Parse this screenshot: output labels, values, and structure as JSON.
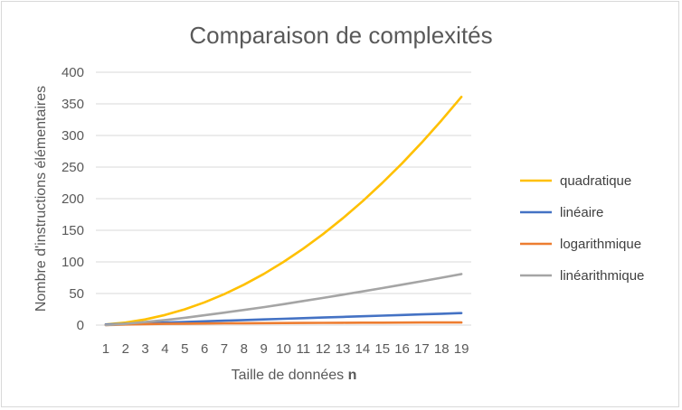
{
  "chart_data": {
    "type": "line",
    "title": "Comparaison de complexités",
    "xlabel": "Taille de données",
    "xlabel_bold": "n",
    "ylabel": "Nombre d'instructions élémentaires",
    "ylim": [
      0,
      400
    ],
    "yticks": [
      "0",
      "50",
      "100",
      "150",
      "200",
      "250",
      "300",
      "350",
      "400"
    ],
    "categories": [
      "1",
      "2",
      "3",
      "4",
      "5",
      "6",
      "7",
      "8",
      "9",
      "10",
      "11",
      "12",
      "13",
      "14",
      "15",
      "16",
      "17",
      "18",
      "19"
    ],
    "grid": true,
    "legend_position": "right",
    "series": [
      {
        "name": "quadratique",
        "color": "#FFC000",
        "values": [
          1,
          4,
          9,
          16,
          25,
          36,
          49,
          64,
          81,
          100,
          121,
          144,
          169,
          196,
          225,
          256,
          289,
          324,
          361
        ]
      },
      {
        "name": "linéaire",
        "color": "#4472C4",
        "values": [
          1,
          2,
          3,
          4,
          5,
          6,
          7,
          8,
          9,
          10,
          11,
          12,
          13,
          14,
          15,
          16,
          17,
          18,
          19
        ]
      },
      {
        "name": "logarithmique",
        "color": "#ED7D31",
        "values": [
          0,
          1,
          1.6,
          2,
          2.3,
          2.6,
          2.8,
          3,
          3.2,
          3.3,
          3.5,
          3.6,
          3.7,
          3.8,
          3.9,
          4,
          4.1,
          4.2,
          4.2
        ]
      },
      {
        "name": "linéarithmique",
        "color": "#A5A5A5",
        "values": [
          0,
          2,
          4.8,
          8,
          11.6,
          15.5,
          19.7,
          24,
          28.5,
          33.2,
          38.1,
          43,
          48.1,
          53.3,
          58.6,
          64,
          69.5,
          75,
          80.7
        ]
      }
    ]
  }
}
